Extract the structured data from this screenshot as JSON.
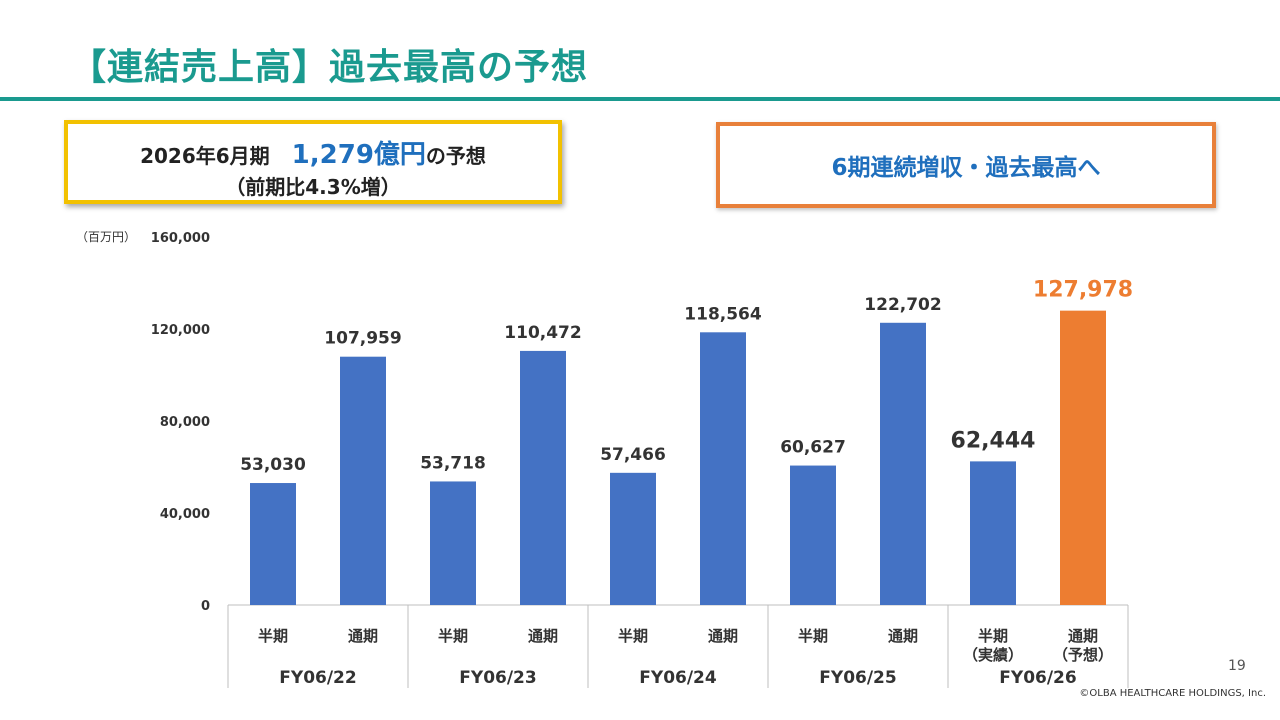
{
  "title": "【連結売上高】過去最高の予想",
  "forecast_box": {
    "period": "2026年6月期",
    "amount": "1,279億円",
    "suffix": "の予想",
    "growth": "（前期比4.3%増）"
  },
  "highlight_box": {
    "text": "6期連続増収・過去最高へ"
  },
  "unit_label": "（百万円）",
  "page_number": "19",
  "copyright": "©OLBA HEALTHCARE HOLDINGS, Inc.",
  "colors": {
    "accent": "#1a9a8f",
    "bar_actual": "#4472c4",
    "bar_forecast": "#ed7d31",
    "forecast_label": "#ed7d31",
    "box_left_border": "#f2c100",
    "box_right_border": "#e8803a",
    "highlight_text": "#1f6fbd"
  },
  "chart_data": {
    "type": "bar",
    "title": "",
    "xlabel": "",
    "ylabel": "（百万円）",
    "ylim": [
      0,
      160000
    ],
    "yticks": [
      0,
      40000,
      80000,
      120000,
      160000
    ],
    "ytick_labels": [
      "0",
      "40,000",
      "80,000",
      "120,000",
      "160,000"
    ],
    "grid": false,
    "groups": [
      {
        "label": "FY06/22",
        "bars": [
          {
            "category": "半期",
            "value": 53030,
            "value_label": "53,030",
            "kind": "actual"
          },
          {
            "category": "通期",
            "value": 107959,
            "value_label": "107,959",
            "kind": "actual"
          }
        ]
      },
      {
        "label": "FY06/23",
        "bars": [
          {
            "category": "半期",
            "value": 53718,
            "value_label": "53,718",
            "kind": "actual"
          },
          {
            "category": "通期",
            "value": 110472,
            "value_label": "110,472",
            "kind": "actual"
          }
        ]
      },
      {
        "label": "FY06/24",
        "bars": [
          {
            "category": "半期",
            "value": 57466,
            "value_label": "57,466",
            "kind": "actual"
          },
          {
            "category": "通期",
            "value": 118564,
            "value_label": "118,564",
            "kind": "actual"
          }
        ]
      },
      {
        "label": "FY06/25",
        "bars": [
          {
            "category": "半期",
            "value": 60627,
            "value_label": "60,627",
            "kind": "actual"
          },
          {
            "category": "通期",
            "value": 122702,
            "value_label": "122,702",
            "kind": "actual"
          }
        ]
      },
      {
        "label": "FY06/26",
        "bars": [
          {
            "category": "半期",
            "sublabel": "（実績）",
            "value": 62444,
            "value_label": "62,444",
            "kind": "actual",
            "emphasis": true
          },
          {
            "category": "通期",
            "sublabel": "（予想）",
            "value": 127978,
            "value_label": "127,978",
            "kind": "forecast",
            "emphasis": true
          }
        ]
      }
    ]
  }
}
